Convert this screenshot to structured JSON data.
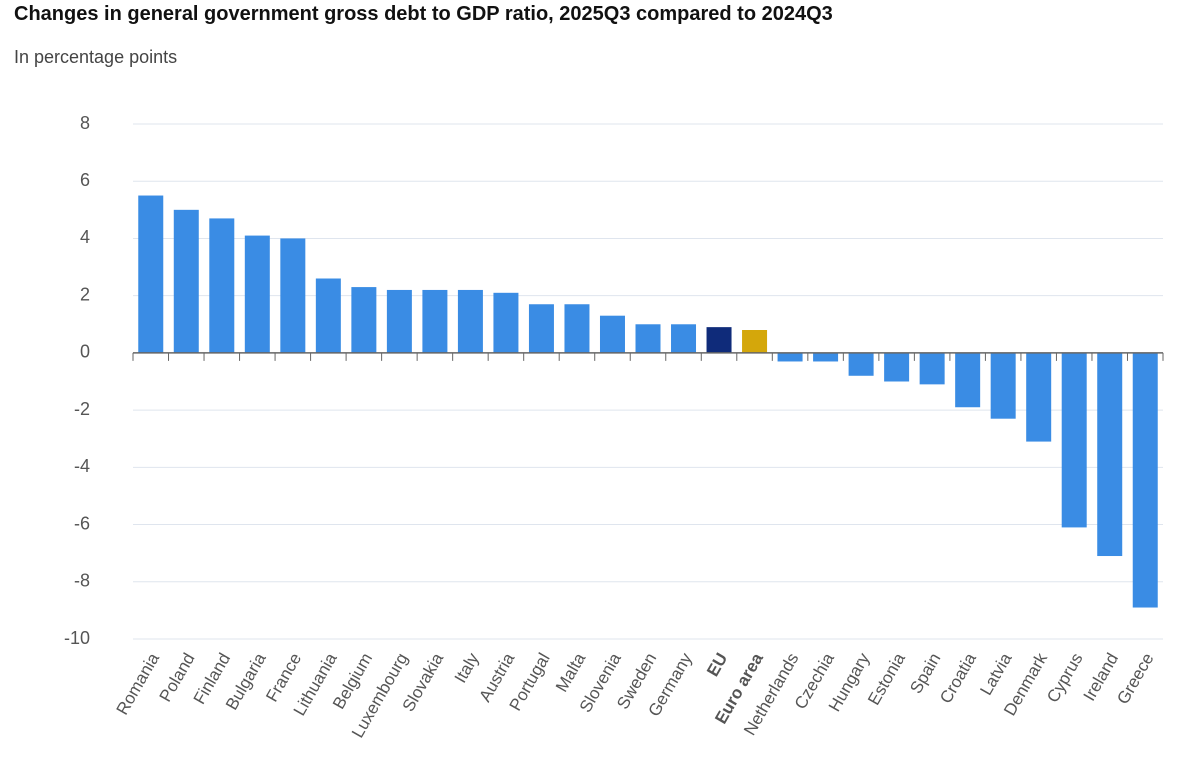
{
  "chart_data": {
    "type": "bar",
    "title": "Changes in general government gross debt to GDP ratio, 2025Q3 compared to 2024Q3",
    "subtitle": "In percentage points",
    "categories": [
      "Romania",
      "Poland",
      "Finland",
      "Bulgaria",
      "France",
      "Lithuania",
      "Belgium",
      "Luxembourg",
      "Slovakia",
      "Italy",
      "Austria",
      "Portugal",
      "Malta",
      "Slovenia",
      "Sweden",
      "Germany",
      "EU",
      "Euro area",
      "Netherlands",
      "Czechia",
      "Hungary",
      "Estonia",
      "Spain",
      "Croatia",
      "Latvia",
      "Denmark",
      "Cyprus",
      "Ireland",
      "Greece"
    ],
    "values": [
      5.5,
      5.0,
      4.7,
      4.1,
      4.0,
      2.6,
      2.3,
      2.2,
      2.2,
      2.2,
      2.1,
      1.7,
      1.7,
      1.3,
      1.0,
      1.0,
      0.9,
      0.8,
      -0.3,
      -0.3,
      -0.8,
      -1.0,
      -1.1,
      -1.9,
      -2.3,
      -3.1,
      -6.1,
      -7.1,
      -8.9
    ],
    "color": "#3a8ce4",
    "highlight": {
      "EU": "#0f2b7a",
      "Euro area": "#d4a70b"
    },
    "ylim": [
      -10,
      8
    ],
    "yticks": [
      -10,
      -8,
      -6,
      -4,
      -2,
      0,
      2,
      4,
      6,
      8
    ],
    "grid": true
  }
}
